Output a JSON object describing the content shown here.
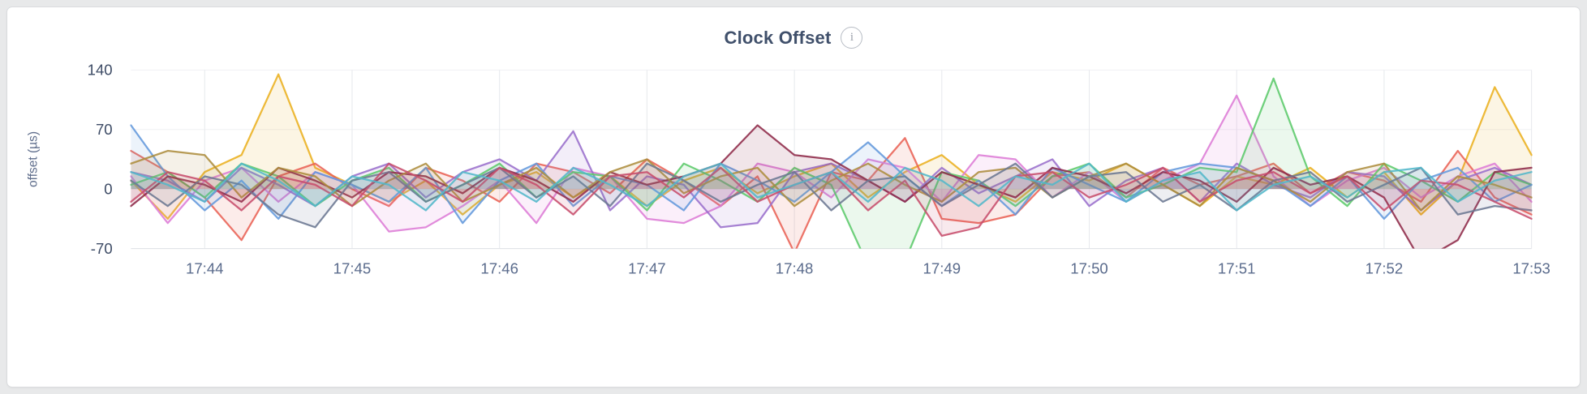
{
  "header": {
    "info_icon_glyph": "i"
  },
  "chart_data": {
    "type": "line",
    "title": "Clock Offset",
    "ylabel": "offset (µs)",
    "ylim": [
      -70,
      140
    ],
    "yticks": [
      140,
      70,
      0,
      -70
    ],
    "x_domain_minutes": [
      0,
      9.5
    ],
    "x_step_minutes": 0.25,
    "grid": "vertical-and-horizontal",
    "legend": "none",
    "fill_opacity": 0.12,
    "xticks": [
      {
        "label": "17:44",
        "t": 0.5
      },
      {
        "label": "17:45",
        "t": 1.5
      },
      {
        "label": "17:46",
        "t": 2.5
      },
      {
        "label": "17:47",
        "t": 3.5
      },
      {
        "label": "17:48",
        "t": 4.5
      },
      {
        "label": "17:49",
        "t": 5.5
      },
      {
        "label": "17:50",
        "t": 6.5
      },
      {
        "label": "17:51",
        "t": 7.5
      },
      {
        "label": "17:52",
        "t": 8.5
      },
      {
        "label": "17:53",
        "t": 9.5
      }
    ],
    "series": [
      {
        "name": "gold",
        "color": "#eab020",
        "values": [
          10,
          -35,
          20,
          40,
          135,
          25,
          5,
          -15,
          10,
          -30,
          5,
          20,
          -10,
          15,
          -20,
          10,
          25,
          -5,
          15,
          30,
          -10,
          20,
          40,
          5,
          -15,
          20,
          10,
          30,
          5,
          -20,
          15,
          5,
          25,
          -10,
          20,
          -30,
          10,
          120,
          40
        ]
      },
      {
        "name": "red",
        "color": "#e96255",
        "values": [
          45,
          20,
          -10,
          -60,
          15,
          30,
          0,
          -20,
          25,
          10,
          -15,
          30,
          20,
          -5,
          35,
          10,
          -20,
          15,
          -75,
          20,
          10,
          60,
          -35,
          -40,
          -30,
          15,
          20,
          -10,
          25,
          5,
          15,
          30,
          -5,
          20,
          10,
          -15,
          45,
          -10,
          -30
        ]
      },
      {
        "name": "pink",
        "color": "#dd7cd6",
        "values": [
          15,
          -40,
          10,
          25,
          -15,
          20,
          5,
          -50,
          -45,
          -20,
          10,
          -40,
          25,
          15,
          -35,
          -40,
          -20,
          30,
          20,
          -10,
          35,
          25,
          -15,
          40,
          35,
          -10,
          20,
          -15,
          10,
          30,
          110,
          15,
          -20,
          10,
          25,
          -10,
          15,
          30,
          -15
        ]
      },
      {
        "name": "purple",
        "color": "#9a70cc",
        "values": [
          20,
          10,
          -15,
          25,
          5,
          -20,
          15,
          30,
          -10,
          20,
          35,
          10,
          68,
          -25,
          15,
          5,
          -45,
          -40,
          20,
          30,
          10,
          -15,
          25,
          -5,
          15,
          35,
          -20,
          10,
          25,
          -15,
          30,
          5,
          -10,
          20,
          15,
          -25,
          10,
          25,
          5
        ]
      },
      {
        "name": "green",
        "color": "#5cc96b",
        "values": [
          5,
          20,
          -10,
          30,
          15,
          -20,
          10,
          25,
          -15,
          5,
          30,
          -10,
          20,
          15,
          -25,
          30,
          10,
          -15,
          25,
          5,
          -90,
          -85,
          20,
          10,
          -20,
          15,
          30,
          -10,
          5,
          25,
          20,
          130,
          15,
          -20,
          30,
          10,
          -15,
          20,
          5
        ]
      },
      {
        "name": "blue",
        "color": "#6399dc",
        "values": [
          75,
          15,
          -25,
          10,
          -35,
          20,
          5,
          -15,
          25,
          -40,
          10,
          30,
          -20,
          15,
          5,
          -25,
          30,
          10,
          -15,
          20,
          55,
          15,
          -20,
          10,
          -30,
          25,
          5,
          -15,
          20,
          30,
          25,
          10,
          -20,
          15,
          -35,
          10,
          25,
          -15,
          5
        ]
      },
      {
        "name": "maroon",
        "color": "#8e2a49",
        "values": [
          -20,
          15,
          5,
          -15,
          25,
          10,
          -10,
          20,
          15,
          -5,
          25,
          10,
          -15,
          20,
          5,
          15,
          30,
          75,
          40,
          35,
          10,
          -15,
          20,
          5,
          -10,
          25,
          15,
          -5,
          20,
          10,
          -15,
          25,
          5,
          15,
          -10,
          -85,
          -60,
          20,
          25
        ]
      },
      {
        "name": "olive",
        "color": "#ad8d3e",
        "values": [
          30,
          45,
          40,
          -10,
          25,
          15,
          -20,
          10,
          30,
          -15,
          5,
          25,
          -10,
          20,
          35,
          -5,
          15,
          25,
          -20,
          10,
          30,
          5,
          -15,
          20,
          25,
          -10,
          15,
          30,
          5,
          -20,
          25,
          10,
          -15,
          20,
          30,
          -25,
          15,
          5,
          -10
        ]
      },
      {
        "name": "slate",
        "color": "#6b7792",
        "values": [
          10,
          -20,
          15,
          5,
          -30,
          -45,
          10,
          20,
          -15,
          5,
          25,
          -10,
          15,
          -20,
          30,
          10,
          -15,
          5,
          20,
          -25,
          10,
          15,
          -20,
          5,
          30,
          -10,
          15,
          20,
          -15,
          5,
          -25,
          10,
          20,
          -15,
          5,
          25,
          -30,
          -20,
          -25
        ]
      },
      {
        "name": "crimson",
        "color": "#c74d6c",
        "values": [
          -15,
          20,
          10,
          -25,
          15,
          5,
          -20,
          30,
          10,
          -15,
          25,
          5,
          -30,
          15,
          20,
          -10,
          25,
          -15,
          5,
          20,
          -25,
          10,
          -55,
          -45,
          15,
          20,
          -10,
          5,
          25,
          -15,
          10,
          20,
          -5,
          15,
          -25,
          10,
          5,
          -15,
          -35
        ]
      },
      {
        "name": "teal",
        "color": "#52b7c9",
        "values": [
          20,
          5,
          -15,
          30,
          10,
          -20,
          15,
          5,
          -25,
          20,
          10,
          -15,
          25,
          5,
          -20,
          15,
          30,
          -10,
          5,
          20,
          -15,
          25,
          10,
          -20,
          15,
          5,
          30,
          -15,
          10,
          20,
          -25,
          5,
          15,
          -10,
          20,
          25,
          -15,
          10,
          20
        ]
      }
    ]
  }
}
